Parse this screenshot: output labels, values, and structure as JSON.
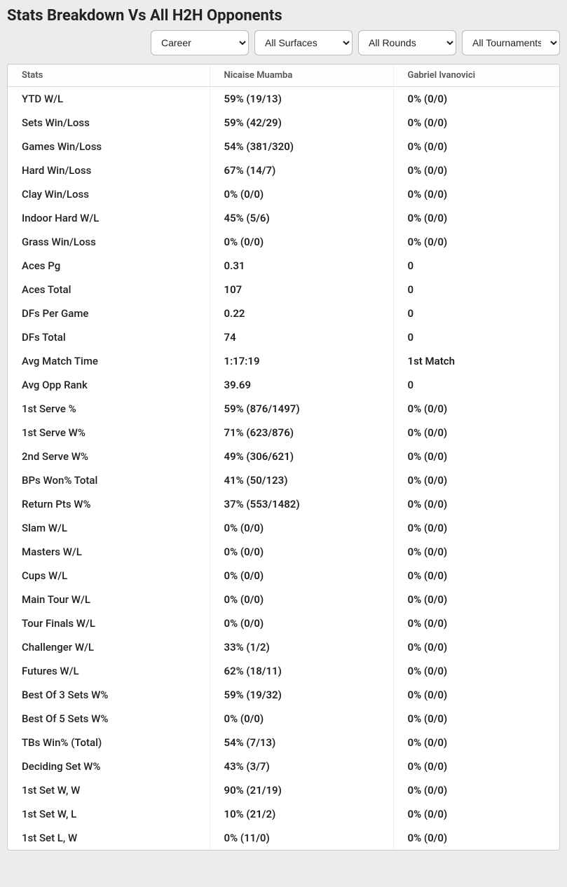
{
  "title": "Stats Breakdown Vs All H2H Opponents",
  "filters": {
    "period": {
      "selected": "Career"
    },
    "surface": {
      "selected": "All Surfaces"
    },
    "round": {
      "selected": "All Rounds"
    },
    "tournament": {
      "selected": "All Tournaments"
    }
  },
  "columns": {
    "stats": "Stats",
    "p1": "Nicaise Muamba",
    "p2": "Gabriel Ivanovici"
  },
  "rows": [
    {
      "stat": "YTD W/L",
      "p1": "59% (19/13)",
      "p2": "0% (0/0)"
    },
    {
      "stat": "Sets Win/Loss",
      "p1": "59% (42/29)",
      "p2": "0% (0/0)"
    },
    {
      "stat": "Games Win/Loss",
      "p1": "54% (381/320)",
      "p2": "0% (0/0)"
    },
    {
      "stat": "Hard Win/Loss",
      "p1": "67% (14/7)",
      "p2": "0% (0/0)"
    },
    {
      "stat": "Clay Win/Loss",
      "p1": "0% (0/0)",
      "p2": "0% (0/0)"
    },
    {
      "stat": "Indoor Hard W/L",
      "p1": "45% (5/6)",
      "p2": "0% (0/0)"
    },
    {
      "stat": "Grass Win/Loss",
      "p1": "0% (0/0)",
      "p2": "0% (0/0)"
    },
    {
      "stat": "Aces Pg",
      "p1": "0.31",
      "p2": "0"
    },
    {
      "stat": "Aces Total",
      "p1": "107",
      "p2": "0"
    },
    {
      "stat": "DFs Per Game",
      "p1": "0.22",
      "p2": "0"
    },
    {
      "stat": "DFs Total",
      "p1": "74",
      "p2": "0"
    },
    {
      "stat": "Avg Match Time",
      "p1": "1:17:19",
      "p2": "1st Match"
    },
    {
      "stat": "Avg Opp Rank",
      "p1": "39.69",
      "p2": "0"
    },
    {
      "stat": "1st Serve %",
      "p1": "59% (876/1497)",
      "p2": "0% (0/0)"
    },
    {
      "stat": "1st Serve W%",
      "p1": "71% (623/876)",
      "p2": "0% (0/0)"
    },
    {
      "stat": "2nd Serve W%",
      "p1": "49% (306/621)",
      "p2": "0% (0/0)"
    },
    {
      "stat": "BPs Won% Total",
      "p1": "41% (50/123)",
      "p2": "0% (0/0)"
    },
    {
      "stat": "Return Pts W%",
      "p1": "37% (553/1482)",
      "p2": "0% (0/0)"
    },
    {
      "stat": "Slam W/L",
      "p1": "0% (0/0)",
      "p2": "0% (0/0)"
    },
    {
      "stat": "Masters W/L",
      "p1": "0% (0/0)",
      "p2": "0% (0/0)"
    },
    {
      "stat": "Cups W/L",
      "p1": "0% (0/0)",
      "p2": "0% (0/0)"
    },
    {
      "stat": "Main Tour W/L",
      "p1": "0% (0/0)",
      "p2": "0% (0/0)"
    },
    {
      "stat": "Tour Finals W/L",
      "p1": "0% (0/0)",
      "p2": "0% (0/0)"
    },
    {
      "stat": "Challenger W/L",
      "p1": "33% (1/2)",
      "p2": "0% (0/0)"
    },
    {
      "stat": "Futures W/L",
      "p1": "62% (18/11)",
      "p2": "0% (0/0)"
    },
    {
      "stat": "Best Of 3 Sets W%",
      "p1": "59% (19/32)",
      "p2": "0% (0/0)"
    },
    {
      "stat": "Best Of 5 Sets W%",
      "p1": "0% (0/0)",
      "p2": "0% (0/0)"
    },
    {
      "stat": "TBs Win% (Total)",
      "p1": "54% (7/13)",
      "p2": "0% (0/0)"
    },
    {
      "stat": "Deciding Set W%",
      "p1": "43% (3/7)",
      "p2": "0% (0/0)"
    },
    {
      "stat": "1st Set W, W",
      "p1": "90% (21/19)",
      "p2": "0% (0/0)"
    },
    {
      "stat": "1st Set W, L",
      "p1": "10% (21/2)",
      "p2": "0% (0/0)"
    },
    {
      "stat": "1st Set L, W",
      "p1": "0% (11/0)",
      "p2": "0% (0/0)"
    }
  ]
}
